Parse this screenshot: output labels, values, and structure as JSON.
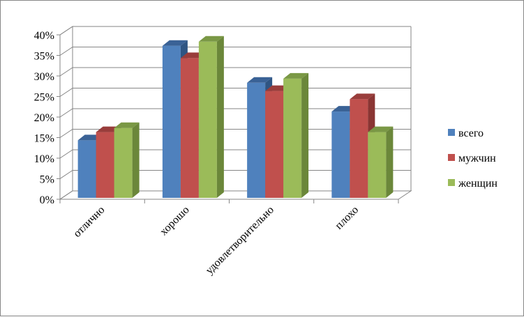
{
  "chart_data": {
    "type": "bar",
    "style": "3d-clustered-column",
    "categories": [
      "отлично",
      "хорошо",
      "удовлетворительно",
      "плохо"
    ],
    "series": [
      {
        "name": "всего",
        "values": [
          14,
          37,
          28,
          21
        ],
        "color": "#4f81bd",
        "top": "#3a6296",
        "side": "#2f5583"
      },
      {
        "name": "мужчин",
        "values": [
          16,
          34,
          26,
          24
        ],
        "color": "#c0504d",
        "top": "#993d3b",
        "side": "#8a3533"
      },
      {
        "name": "женщин",
        "values": [
          17,
          38,
          29,
          16
        ],
        "color": "#9bbb59",
        "top": "#7a9845",
        "side": "#6b873a"
      }
    ],
    "yticks": [
      "0%",
      "5%",
      "10%",
      "15%",
      "20%",
      "25%",
      "30%",
      "35%",
      "40%"
    ],
    "ylim": [
      0,
      40
    ],
    "grid": true,
    "legend_position": "right",
    "title": "",
    "xlabel": "",
    "ylabel": ""
  }
}
